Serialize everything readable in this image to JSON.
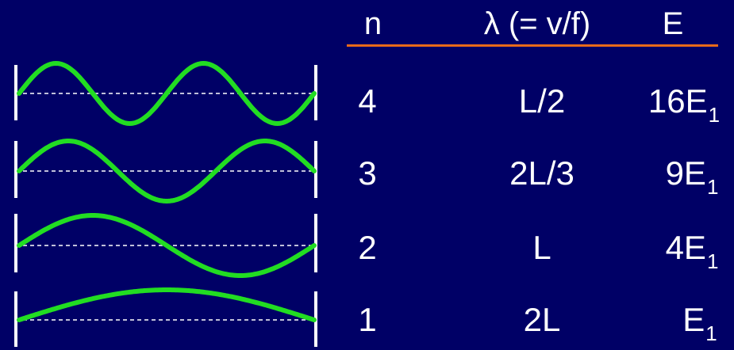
{
  "table": {
    "headers": {
      "n": "n",
      "lambda": "λ (= v/f)",
      "energy": "E"
    },
    "rows": [
      {
        "n": "4",
        "lambda": "L/2",
        "energy_coef": "16E",
        "energy_sub": "1"
      },
      {
        "n": "3",
        "lambda": "2L/3",
        "energy_coef": "9E",
        "energy_sub": "1"
      },
      {
        "n": "2",
        "lambda": "L",
        "energy_coef": "4E",
        "energy_sub": "1"
      },
      {
        "n": "1",
        "lambda": "2L",
        "energy_coef": "E",
        "energy_sub": "1"
      }
    ]
  },
  "diagram": {
    "modes": [
      4,
      3,
      2,
      1
    ]
  },
  "colors": {
    "background": "#000066",
    "text": "#ffffff",
    "wave": "#22dd22",
    "rule": "#e86a1a",
    "walls": "#ffffff",
    "baseline": "#ffffff"
  }
}
